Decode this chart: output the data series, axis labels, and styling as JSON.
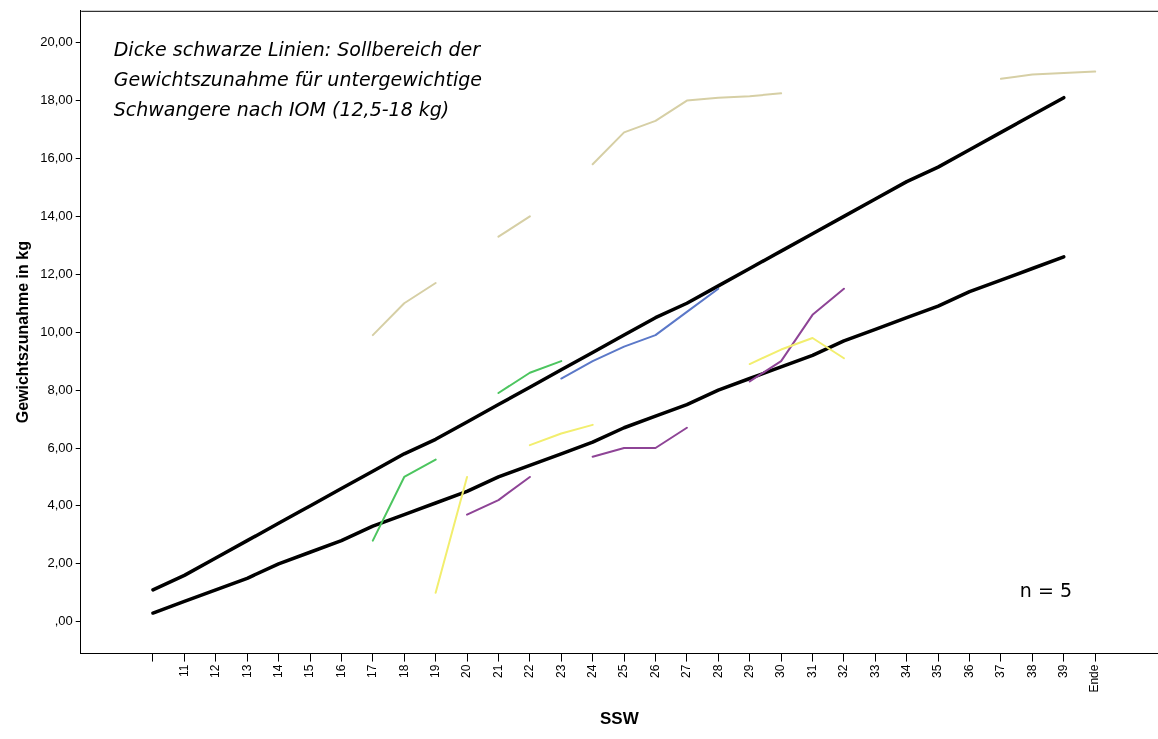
{
  "chart_data": {
    "type": "line",
    "xlabel": "SSW",
    "ylabel": "Gewichtszunahme in kg",
    "categories": [
      null,
      "11",
      "12",
      "13",
      "14",
      "15",
      "16",
      "17",
      "18",
      "19",
      "20",
      "21",
      "22",
      "23",
      "24",
      "25",
      "26",
      "27",
      "28",
      "29",
      "30",
      "31",
      "32",
      "33",
      "34",
      "35",
      "36",
      "37",
      "38",
      "39",
      "Ende"
    ],
    "ylim": [
      -1.1,
      21.1
    ],
    "yticks": [
      {
        "value": 0,
        "label": ",00"
      },
      {
        "value": 2,
        "label": "2,00"
      },
      {
        "value": 4,
        "label": "4,00"
      },
      {
        "value": 6,
        "label": "6,00"
      },
      {
        "value": 8,
        "label": "8,00"
      },
      {
        "value": 10,
        "label": "10,00"
      },
      {
        "value": 12,
        "label": "12,00"
      },
      {
        "value": 14,
        "label": "14,00"
      },
      {
        "value": 16,
        "label": "16,00"
      },
      {
        "value": 18,
        "label": "18,00"
      },
      {
        "value": 20,
        "label": "20,00"
      }
    ],
    "series": [
      {
        "color": "#d6cfa5",
        "values": [
          null,
          null,
          null,
          null,
          null,
          null,
          null,
          9.9,
          11.0,
          11.7,
          null,
          13.3,
          14.0,
          null,
          15.8,
          16.9,
          17.3,
          18.0,
          18.1,
          18.15,
          18.25,
          null,
          null,
          null,
          null,
          null,
          null,
          18.75,
          18.9,
          18.95,
          19.0
        ]
      },
      {
        "color": "#4cc55f",
        "values": [
          null,
          null,
          null,
          null,
          null,
          null,
          null,
          2.8,
          5.0,
          5.6,
          null,
          7.9,
          8.6,
          9.0,
          null,
          null,
          null,
          null,
          null,
          null,
          null,
          null,
          null,
          null,
          null,
          null,
          null,
          null,
          null,
          null,
          null
        ]
      },
      {
        "color": "#5b78c8",
        "values": [
          null,
          null,
          null,
          null,
          null,
          null,
          null,
          null,
          null,
          null,
          null,
          null,
          null,
          8.4,
          9.0,
          9.5,
          9.9,
          10.7,
          11.5,
          null,
          null,
          null,
          null,
          null,
          null,
          null,
          null,
          null,
          null,
          null,
          null
        ]
      },
      {
        "color": "#f2ee6e",
        "values": [
          null,
          null,
          null,
          null,
          null,
          null,
          null,
          null,
          null,
          1.0,
          5.0,
          null,
          6.1,
          6.5,
          6.8,
          null,
          null,
          null,
          null,
          8.9,
          9.4,
          9.8,
          9.1,
          null,
          null,
          null,
          null,
          null,
          null,
          null,
          null
        ]
      },
      {
        "color": "#8e4496",
        "values": [
          null,
          null,
          null,
          null,
          null,
          null,
          null,
          null,
          null,
          null,
          3.7,
          4.2,
          5.0,
          null,
          5.7,
          6.0,
          6.0,
          6.7,
          null,
          8.3,
          9.0,
          10.6,
          11.5,
          null,
          null,
          null,
          null,
          null,
          null,
          null,
          null
        ]
      },
      {
        "color": "#000000",
        "values": [
          1.1,
          1.6,
          2.2,
          2.8,
          3.4,
          4.0,
          4.6,
          5.2,
          5.8,
          6.3,
          6.9,
          7.5,
          8.1,
          8.7,
          9.3,
          9.9,
          10.5,
          11.0,
          11.6,
          12.2,
          12.8,
          13.4,
          14.0,
          14.6,
          15.2,
          15.7,
          16.3,
          16.9,
          17.5,
          18.1,
          null
        ]
      },
      {
        "color": "#000000",
        "values": [
          0.3,
          0.7,
          1.1,
          1.5,
          2.0,
          2.4,
          2.8,
          3.3,
          3.7,
          4.1,
          4.5,
          5.0,
          5.4,
          5.8,
          6.2,
          6.7,
          7.1,
          7.5,
          8.0,
          8.4,
          8.8,
          9.2,
          9.7,
          10.1,
          10.5,
          10.9,
          11.4,
          11.8,
          12.2,
          12.6,
          null
        ]
      }
    ],
    "annotations": [
      "Dicke schwarze Linien: Sollbereich der Gewichtszunahme für untergewichtige Schwangere nach IOM (12,5-18 kg)",
      "n = 5"
    ]
  }
}
